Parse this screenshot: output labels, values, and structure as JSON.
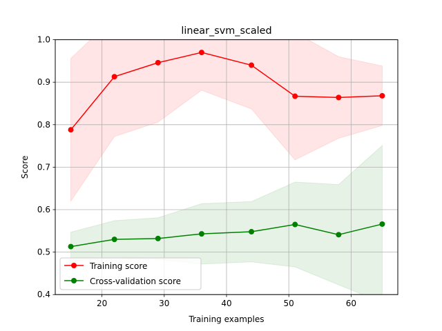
{
  "chart_data": {
    "type": "line",
    "title": "linear_svm_scaled",
    "xlabel": "Training examples",
    "ylabel": "Score",
    "xlim": [
      12.5,
      67.5
    ],
    "ylim": [
      0.4,
      1.0
    ],
    "xticks": [
      20,
      30,
      40,
      50,
      60
    ],
    "yticks": [
      0.4,
      0.5,
      0.6,
      0.7,
      0.8,
      0.9,
      1.0
    ],
    "xtick_labels": [
      "20",
      "30",
      "40",
      "50",
      "60"
    ],
    "ytick_labels": [
      "0.4",
      "0.5",
      "0.6",
      "0.7",
      "0.8",
      "0.9",
      "1.0"
    ],
    "grid": true,
    "legend_position": "lower-left",
    "x": [
      15,
      22,
      29,
      36,
      44,
      51,
      58,
      65
    ],
    "series": [
      {
        "name": "Training score",
        "color": "#ff0000",
        "band_color": "#ff0000",
        "values": [
          0.788,
          0.913,
          0.946,
          0.97,
          0.94,
          0.867,
          0.864,
          0.868
        ],
        "band_lower": [
          0.62,
          0.772,
          0.806,
          0.881,
          0.837,
          0.717,
          0.768,
          0.798
        ],
        "band_upper": [
          0.956,
          1.054,
          1.086,
          1.059,
          1.043,
          1.017,
          0.96,
          0.938
        ]
      },
      {
        "name": "Cross-validation score",
        "color": "#008000",
        "band_color": "#008000",
        "values": [
          0.513,
          0.53,
          0.532,
          0.543,
          0.548,
          0.565,
          0.541,
          0.566
        ],
        "band_lower": [
          0.479,
          0.486,
          0.483,
          0.472,
          0.477,
          0.465,
          0.423,
          0.381
        ],
        "band_upper": [
          0.547,
          0.574,
          0.581,
          0.614,
          0.619,
          0.665,
          0.659,
          0.751
        ]
      }
    ]
  }
}
